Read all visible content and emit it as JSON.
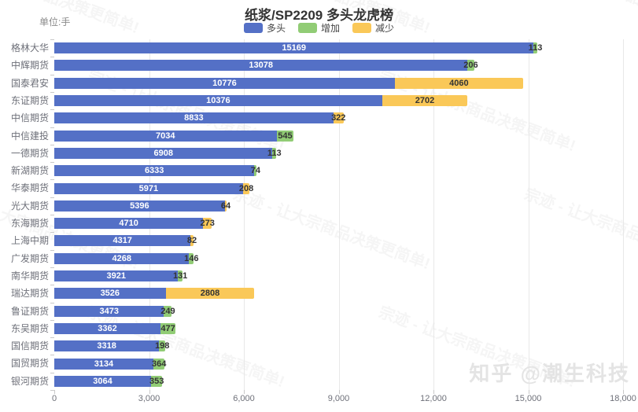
{
  "meta": {
    "unit_label": "单位:手",
    "watermark_text": "宗迹 - 让大宗商品决策更简单!",
    "attribution": "知乎 @潮生科技"
  },
  "chart_data": {
    "type": "bar",
    "orientation": "horizontal",
    "title": "纸浆/SP2209 多头龙虎榜",
    "xlabel": "",
    "ylabel": "",
    "xlim": [
      0,
      18000
    ],
    "grid": true,
    "legend_position": "top",
    "x_ticks": [
      "0",
      "3,000",
      "6,000",
      "9,000",
      "12,000",
      "15,000",
      "18,000"
    ],
    "x_tick_values": [
      0,
      3000,
      6000,
      9000,
      12000,
      15000,
      18000
    ],
    "legend": [
      {
        "label": "多头",
        "color": "#5470c6"
      },
      {
        "label": "增加",
        "color": "#91cc75"
      },
      {
        "label": "减少",
        "color": "#fac858"
      }
    ],
    "series_colors": {
      "long": "#5470c6",
      "increase": "#91cc75",
      "decrease": "#fac858"
    },
    "rows": [
      {
        "name": "格林大华",
        "long": 15169,
        "delta": 113,
        "delta_type": "increase"
      },
      {
        "name": "中辉期货",
        "long": 13078,
        "delta": 206,
        "delta_type": "increase"
      },
      {
        "name": "国泰君安",
        "long": 10776,
        "delta": 4060,
        "delta_type": "decrease"
      },
      {
        "name": "东证期货",
        "long": 10376,
        "delta": 2702,
        "delta_type": "decrease"
      },
      {
        "name": "中信期货",
        "long": 8833,
        "delta": 322,
        "delta_type": "decrease"
      },
      {
        "name": "中信建投",
        "long": 7034,
        "delta": 545,
        "delta_type": "increase"
      },
      {
        "name": "一德期货",
        "long": 6908,
        "delta": 113,
        "delta_type": "increase"
      },
      {
        "name": "新湖期货",
        "long": 6333,
        "delta": 74,
        "delta_type": "increase"
      },
      {
        "name": "华泰期货",
        "long": 5971,
        "delta": 208,
        "delta_type": "decrease"
      },
      {
        "name": "光大期货",
        "long": 5396,
        "delta": 64,
        "delta_type": "decrease"
      },
      {
        "name": "东海期货",
        "long": 4710,
        "delta": 273,
        "delta_type": "decrease"
      },
      {
        "name": "上海中期",
        "long": 4317,
        "delta": 82,
        "delta_type": "decrease"
      },
      {
        "name": "广发期货",
        "long": 4268,
        "delta": 146,
        "delta_type": "increase"
      },
      {
        "name": "南华期货",
        "long": 3921,
        "delta": 131,
        "delta_type": "increase"
      },
      {
        "name": "瑞达期货",
        "long": 3526,
        "delta": 2808,
        "delta_type": "decrease"
      },
      {
        "name": "鲁证期货",
        "long": 3473,
        "delta": 249,
        "delta_type": "increase"
      },
      {
        "name": "东吴期货",
        "long": 3362,
        "delta": 477,
        "delta_type": "increase"
      },
      {
        "name": "国信期货",
        "long": 3318,
        "delta": 198,
        "delta_type": "increase"
      },
      {
        "name": "国贸期货",
        "long": 3134,
        "delta": 364,
        "delta_type": "increase"
      },
      {
        "name": "银河期货",
        "long": 3064,
        "delta": 353,
        "delta_type": "increase"
      }
    ]
  }
}
